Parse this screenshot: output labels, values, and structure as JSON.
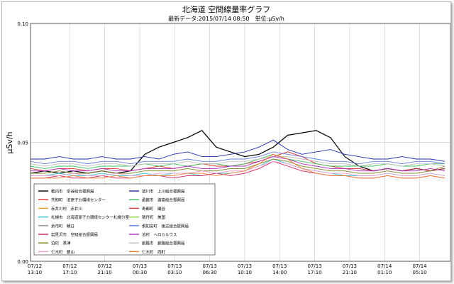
{
  "chart_data": {
    "type": "line",
    "title": "北海道 空間線量率グラフ",
    "subtitle": "最新データ:2015/07/14 08:50　単位:μSv/h",
    "ylabel": "μSv/h",
    "ylim": [
      0.0,
      0.1
    ],
    "yticks": [
      "0.00",
      "0.05",
      "0.10"
    ],
    "xticks": [
      [
        "07/12",
        "13:10"
      ],
      [
        "07/12",
        "17:10"
      ],
      [
        "07/12",
        "21:10"
      ],
      [
        "07/13",
        "00:30"
      ],
      [
        "07/13",
        "03:10"
      ],
      [
        "07/13",
        "06:30"
      ],
      [
        "07/13",
        "10:10"
      ],
      [
        "07/13",
        "14:00"
      ],
      [
        "07/13",
        "17:10"
      ],
      [
        "07/13",
        "21:10"
      ],
      [
        "07/14",
        "01:10"
      ],
      [
        "07/14",
        "05:10"
      ]
    ],
    "series": [
      {
        "name": "稚内市　宗谷総合振興局",
        "color": "#000000",
        "values": [
          0.037,
          0.038,
          0.037,
          0.038,
          0.037,
          0.038,
          0.037,
          0.038,
          0.045,
          0.048,
          0.05,
          0.052,
          0.055,
          0.048,
          0.046,
          0.044,
          0.045,
          0.048,
          0.053,
          0.054,
          0.055,
          0.052,
          0.044,
          0.04,
          0.038,
          0.039,
          0.038,
          0.039,
          0.038,
          0.039
        ]
      },
      {
        "name": "旭川市　上川総合振興局",
        "color": "#1f2ea8",
        "values": [
          0.043,
          0.043,
          0.044,
          0.043,
          0.043,
          0.044,
          0.043,
          0.043,
          0.044,
          0.043,
          0.045,
          0.046,
          0.044,
          0.044,
          0.045,
          0.046,
          0.048,
          0.051,
          0.047,
          0.045,
          0.046,
          0.047,
          0.045,
          0.044,
          0.043,
          0.043,
          0.044,
          0.043,
          0.043,
          0.042
        ]
      },
      {
        "name": "共和町　泊原子力環境センター",
        "color": "#e03030",
        "values": [
          0.039,
          0.038,
          0.039,
          0.039,
          0.038,
          0.039,
          0.039,
          0.038,
          0.039,
          0.04,
          0.039,
          0.04,
          0.041,
          0.04,
          0.04,
          0.041,
          0.042,
          0.044,
          0.046,
          0.044,
          0.041,
          0.04,
          0.039,
          0.039,
          0.038,
          0.039,
          0.038,
          0.039,
          0.038,
          0.039
        ]
      },
      {
        "name": "函館市　渡島総合振興局",
        "color": "#40c060",
        "values": [
          0.04,
          0.039,
          0.04,
          0.04,
          0.039,
          0.04,
          0.04,
          0.04,
          0.041,
          0.04,
          0.041,
          0.04,
          0.041,
          0.041,
          0.04,
          0.041,
          0.043,
          0.045,
          0.043,
          0.042,
          0.041,
          0.04,
          0.04,
          0.04,
          0.04,
          0.041,
          0.04,
          0.04,
          0.041,
          0.041
        ]
      },
      {
        "name": "札幌市　北海道原子力環境センター札幌分室",
        "color": "#30c8d8",
        "values": [
          0.036,
          0.036,
          0.037,
          0.036,
          0.036,
          0.037,
          0.036,
          0.036,
          0.037,
          0.036,
          0.037,
          0.037,
          0.036,
          0.037,
          0.037,
          0.038,
          0.04,
          0.043,
          0.041,
          0.039,
          0.038,
          0.037,
          0.036,
          0.036,
          0.036,
          0.037,
          0.036,
          0.036,
          0.037,
          0.036
        ]
      },
      {
        "name": "倶知安町　後志総合振興局",
        "color": "#6080e0",
        "values": [
          0.042,
          0.041,
          0.042,
          0.042,
          0.041,
          0.042,
          0.042,
          0.041,
          0.042,
          0.042,
          0.042,
          0.043,
          0.042,
          0.042,
          0.043,
          0.043,
          0.044,
          0.046,
          0.045,
          0.044,
          0.043,
          0.042,
          0.042,
          0.041,
          0.042,
          0.042,
          0.041,
          0.042,
          0.042,
          0.041
        ]
      },
      {
        "name": "岩見沢市　空知総合振興局",
        "color": "#d02060",
        "values": [
          0.035,
          0.035,
          0.036,
          0.035,
          0.035,
          0.036,
          0.035,
          0.035,
          0.036,
          0.036,
          0.035,
          0.036,
          0.036,
          0.037,
          0.036,
          0.037,
          0.039,
          0.042,
          0.04,
          0.038,
          0.037,
          0.036,
          0.036,
          0.035,
          0.035,
          0.036,
          0.035,
          0.035,
          0.036,
          0.035
        ]
      },
      {
        "name": "釧路市　釧路総合振興局",
        "color": "#c0c0c0",
        "values": [
          0.041,
          0.04,
          0.041,
          0.041,
          0.04,
          0.041,
          0.041,
          0.04,
          0.041,
          0.041,
          0.041,
          0.042,
          0.041,
          0.041,
          0.042,
          0.042,
          0.043,
          0.044,
          0.044,
          0.043,
          0.042,
          0.041,
          0.041,
          0.04,
          0.041,
          0.041,
          0.04,
          0.041,
          0.041,
          0.04
        ]
      },
      {
        "name": "泊村　茶津",
        "color": "#808020",
        "values": [
          0.037,
          0.037,
          0.038,
          0.037,
          0.037,
          0.038,
          0.037,
          0.037,
          0.038,
          0.038,
          0.038,
          0.039,
          0.038,
          0.038,
          0.039,
          0.039,
          0.041,
          0.043,
          0.042,
          0.04,
          0.039,
          0.038,
          0.038,
          0.037,
          0.037,
          0.038,
          0.037,
          0.037,
          0.038,
          0.04
        ]
      },
      {
        "name": "泊村　ヘロカルウス",
        "color": "#b030c0",
        "values": [
          0.038,
          0.038,
          0.039,
          0.038,
          0.038,
          0.039,
          0.038,
          0.038,
          0.039,
          0.039,
          0.039,
          0.04,
          0.039,
          0.039,
          0.04,
          0.04,
          0.042,
          0.044,
          0.043,
          0.041,
          0.04,
          0.039,
          0.039,
          0.038,
          0.038,
          0.039,
          0.038,
          0.038,
          0.039,
          0.038
        ]
      },
      {
        "name": "仁木町　銀山",
        "color": "#f0a0d0",
        "values": [
          0.036,
          0.036,
          0.036,
          0.037,
          0.036,
          0.036,
          0.037,
          0.036,
          0.036,
          0.037,
          0.037,
          0.037,
          0.038,
          0.037,
          0.038,
          0.038,
          0.04,
          0.042,
          0.041,
          0.039,
          0.038,
          0.037,
          0.037,
          0.036,
          0.036,
          0.037,
          0.036,
          0.036,
          0.037,
          0.036
        ]
      },
      {
        "name": "仁木町　西町",
        "color": "#f08030",
        "values": [
          0.035,
          0.035,
          0.035,
          0.036,
          0.035,
          0.035,
          0.036,
          0.035,
          0.036,
          0.036,
          0.036,
          0.037,
          0.037,
          0.036,
          0.037,
          0.038,
          0.041,
          0.045,
          0.043,
          0.039,
          0.037,
          0.036,
          0.036,
          0.035,
          0.035,
          0.036,
          0.035,
          0.035,
          0.036,
          0.035
        ]
      }
    ],
    "legend": [
      {
        "name": "稚内市　宗谷総合振興局",
        "color": "#000000"
      },
      {
        "name": "旭川市　上川総合振興局",
        "color": "#1f2ea8"
      },
      {
        "name": "共和町　泊原子力環境センター",
        "color": "#e03030"
      },
      {
        "name": "函館市　渡島総合振興局",
        "color": "#40c060"
      },
      {
        "name": "赤井川村　赤井川",
        "color": "#f0a020"
      },
      {
        "name": "寿都町　磯谷",
        "color": "#d04040"
      },
      {
        "name": "札幌市　北海道原子力環境センター札幌分室",
        "color": "#30c8d8"
      },
      {
        "name": "積丹町　美国",
        "color": "#90d040"
      },
      {
        "name": "余市町　朝日",
        "color": "#909090"
      },
      {
        "name": "倶知安町　後志総合振興局",
        "color": "#6080e0"
      },
      {
        "name": "岩見沢市　空知総合振興局",
        "color": "#d02060"
      },
      {
        "name": "泊村　ヘロカルウス",
        "color": "#b030c0"
      },
      {
        "name": "泊村　茶津",
        "color": "#808020"
      },
      {
        "name": "釧路市　釧路総合振興局",
        "color": "#c0c0c0"
      },
      {
        "name": "仁木町　銀山",
        "color": "#f0a0d0"
      },
      {
        "name": "仁木町　西町",
        "color": "#f08030"
      }
    ],
    "legend_placement": "bottom-left",
    "grid": true
  }
}
